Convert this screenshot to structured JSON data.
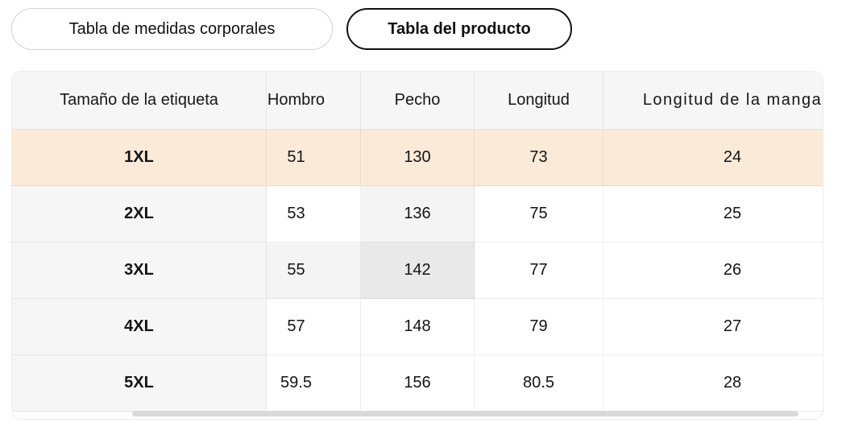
{
  "tabs": {
    "body_measurements": {
      "label": "Tabla de medidas corporales",
      "selected": false
    },
    "product": {
      "label": "Tabla del producto",
      "selected": true
    }
  },
  "table": {
    "columns": [
      "Tamaño de la etiqueta",
      "Hombro",
      "Pecho",
      "Longitud",
      "Longitud de la manga"
    ],
    "rows": [
      {
        "size": "1XL",
        "values": [
          "51",
          "130",
          "73",
          "24"
        ]
      },
      {
        "size": "2XL",
        "values": [
          "53",
          "136",
          "75",
          "25"
        ]
      },
      {
        "size": "3XL",
        "values": [
          "55",
          "142",
          "77",
          "26"
        ]
      },
      {
        "size": "4XL",
        "values": [
          "57",
          "148",
          "79",
          "27"
        ]
      },
      {
        "size": "5XL",
        "values": [
          "59.5",
          "156",
          "80.5",
          "28"
        ]
      }
    ],
    "selected_row": "1XL",
    "hovered_cell": {
      "row": "3XL",
      "column": "Pecho",
      "value": "142"
    }
  },
  "colors": {
    "selected_row_bg": "#fcead9",
    "header_bg": "#f6f6f7",
    "hover_path_bg": "#f4f4f5",
    "hovered_cell_bg": "#e9e9ea",
    "tab_selected_border": "#111111",
    "scrollbar_thumb": "#d9d9d9"
  }
}
